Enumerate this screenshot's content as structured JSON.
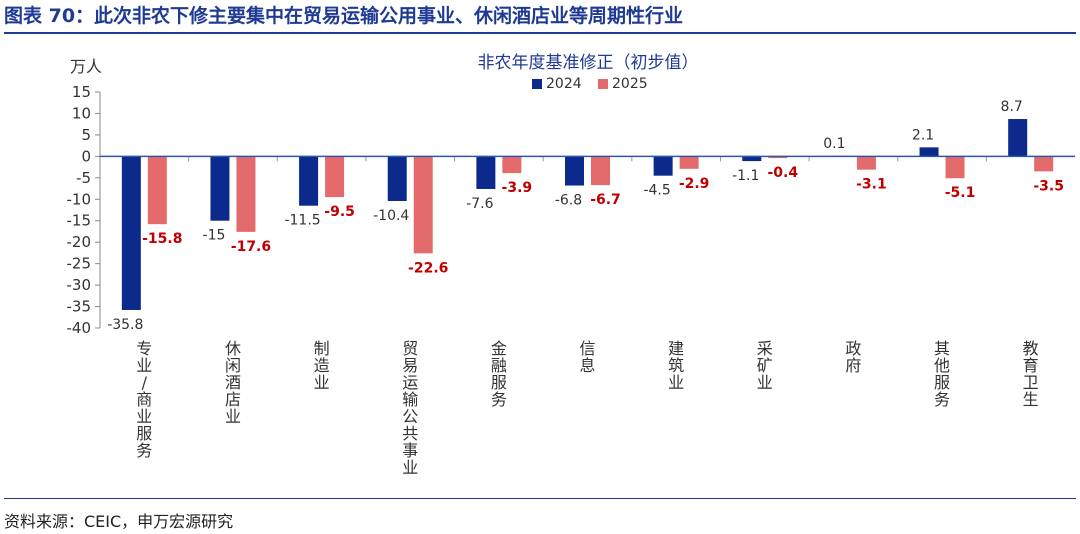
{
  "figure": {
    "title": "图表 70：此次非农下修主要集中在贸易运输公用事业、休闲酒店业等周期性行业",
    "source": "资料来源：CEIC，申万宏源研究"
  },
  "colors": {
    "accent": "#1f3a93",
    "s2024": "#0b2a8c",
    "s2025": "#e46b6b",
    "label2025": "#c00000"
  },
  "chart_data": {
    "type": "bar",
    "title": "非农年度基准修正（初步值）",
    "ylabel": "万人",
    "xlabel": "",
    "ylim": [
      -40,
      15
    ],
    "yticks": [
      15,
      10,
      5,
      0,
      -5,
      -10,
      -15,
      -20,
      -25,
      -30,
      -35,
      -40
    ],
    "legend": "top",
    "categories": [
      "专业/商业服务",
      "休闲酒店业",
      "制造业",
      "贸易运输公共事业",
      "金融服务",
      "信息",
      "建筑业",
      "采矿业",
      "政府",
      "其他服务",
      "教育卫生"
    ],
    "series": [
      {
        "name": "2024",
        "values": [
          -35.8,
          -15,
          -11.5,
          -10.4,
          -7.6,
          -6.8,
          -4.5,
          -1.1,
          0.1,
          2.1,
          8.7
        ],
        "labels": [
          "-35.8",
          "-15",
          "-11.5",
          "-10.4",
          "-7.6",
          "-6.8",
          "-4.5",
          "-1.1",
          "0.1",
          "2.1",
          "8.7"
        ]
      },
      {
        "name": "2025",
        "values": [
          -15.8,
          -17.6,
          -9.5,
          -22.6,
          -3.9,
          -6.7,
          -2.9,
          -0.4,
          -3.1,
          -5.1,
          -3.5
        ],
        "labels": [
          "-15.8",
          "-17.6",
          "-9.5",
          "-22.6",
          "-3.9",
          "-6.7",
          "-2.9",
          "-0.4",
          "-3.1",
          "-5.1",
          "-3.5"
        ]
      }
    ]
  }
}
